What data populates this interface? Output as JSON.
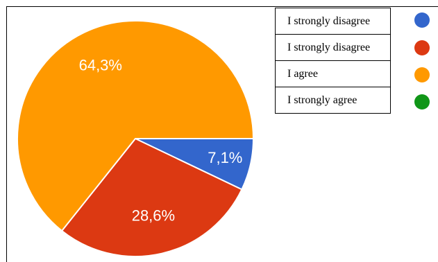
{
  "chart_data": {
    "type": "pie",
    "slices": [
      {
        "label": "I strongly disagree",
        "value": 7.1,
        "display": "7,1%",
        "color": "#3366cc"
      },
      {
        "label": "I strongly disagree",
        "value": 28.6,
        "display": "28,6%",
        "color": "#dc3912"
      },
      {
        "label": "I agree",
        "value": 64.3,
        "display": "64,3%",
        "color": "#ff9900"
      },
      {
        "label": "I strongly agree",
        "value": 0,
        "display": "",
        "color": "#109618"
      }
    ],
    "legend_placement": "top-right"
  }
}
